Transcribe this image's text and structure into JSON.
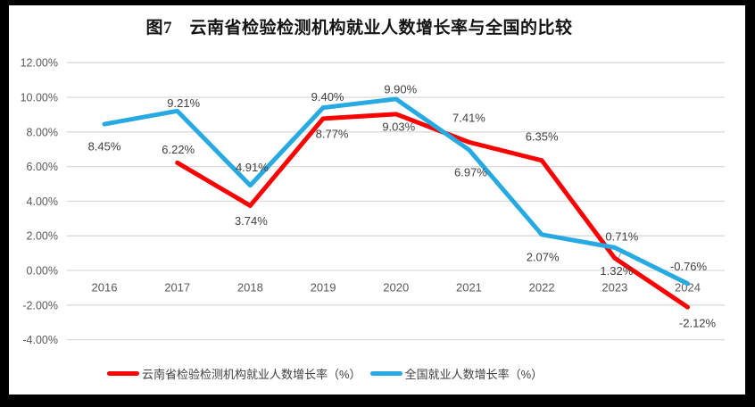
{
  "title": "图7　云南省检验检测机构就业人数增长率与全国的比较",
  "frame": {
    "border_color": "#000000",
    "surface_color": "#ffffff"
  },
  "chart_data": {
    "type": "line",
    "categories": [
      "2016",
      "2017",
      "2018",
      "2019",
      "2020",
      "2021",
      "2022",
      "2023",
      "2024"
    ],
    "series": [
      {
        "name": "云南省检验检测机构就业人数增长率（%）",
        "color": "#FC0000",
        "values": [
          null,
          6.22,
          3.74,
          8.77,
          9.03,
          7.41,
          6.35,
          0.71,
          -2.12
        ],
        "label_offsets": [
          null,
          [
            1,
            -15
          ],
          [
            1,
            17
          ],
          [
            10,
            17
          ],
          [
            3,
            14
          ],
          [
            0,
            -27
          ],
          [
            0,
            -27
          ],
          [
            8,
            -24
          ],
          [
            11,
            18
          ]
        ]
      },
      {
        "name": "全国就业人数增长率（%）",
        "color": "#27A9E1",
        "values": [
          8.45,
          9.21,
          4.91,
          9.4,
          9.9,
          6.97,
          2.07,
          1.32,
          -0.76
        ],
        "label_offsets": [
          [
            0,
            25
          ],
          [
            7,
            -9
          ],
          [
            2,
            -20
          ],
          [
            5,
            -12
          ],
          [
            5,
            -11
          ],
          [
            2,
            25
          ],
          [
            1,
            25
          ],
          [
            2,
            26
          ],
          [
            1,
            -19
          ]
        ]
      }
    ],
    "y_ticks": [
      12,
      10,
      8,
      6,
      4,
      2,
      0,
      -2,
      -4
    ],
    "ylim": [
      -4,
      12
    ],
    "value_suffix": "%",
    "grid": true,
    "legend_position": "bottom",
    "leader_line": {
      "series": 1,
      "index": 7
    },
    "colors": {
      "grid": "#D9D9D9",
      "tick_text": "#595959",
      "data_label_text": "#404040",
      "leader": "#A6A6A6"
    }
  }
}
